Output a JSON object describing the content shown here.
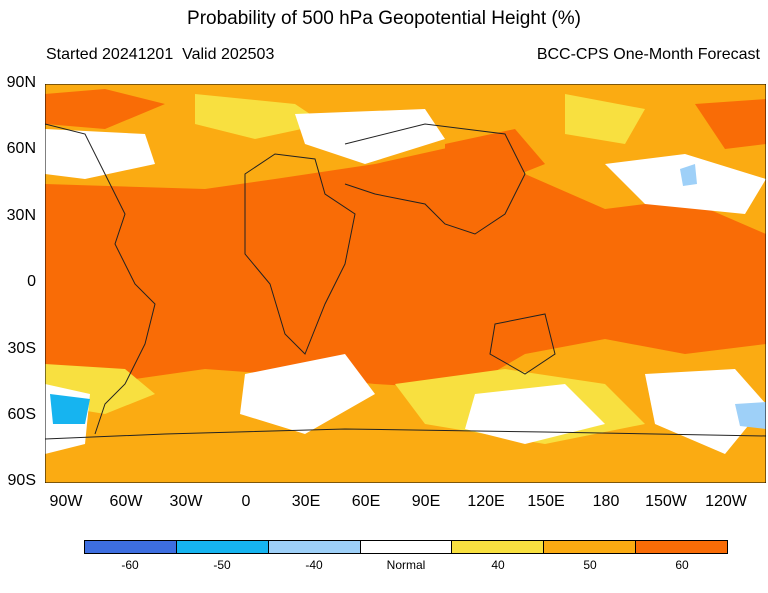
{
  "title": "Probability of 500 hPa Geopotential Height (%)",
  "subtitle_left": "Started 20241201  Valid 202503",
  "subtitle_right": "BCC-CPS One-Month Forecast",
  "lat_labels": [
    "90N",
    "60N",
    "30N",
    "0",
    "30S",
    "60S",
    "90S"
  ],
  "lon_labels": [
    "90W",
    "60W",
    "30W",
    "0",
    "30E",
    "60E",
    "90E",
    "120E",
    "150E",
    "180",
    "150W",
    "120W"
  ],
  "colorbar": {
    "colors": [
      "#3d6ee0",
      "#16b4f0",
      "#9ed0f8",
      "#ffffff",
      "#f8e040",
      "#fbab12",
      "#f96c06"
    ],
    "labels": [
      "-60",
      "-50",
      "-40",
      "Normal",
      "40",
      "50",
      "60"
    ]
  }
}
